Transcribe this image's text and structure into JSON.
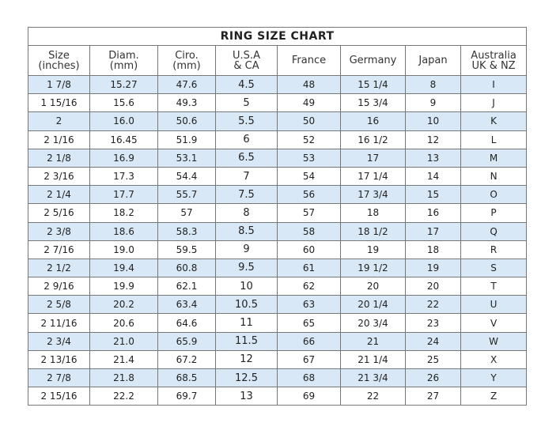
{
  "title": "RING  SIZE  CHART",
  "headers": [
    "Size\n(inches)",
    "Diam.\n(mm)",
    "Ciro.\n(mm)",
    "U.S.A\n& CA",
    "France",
    "Germany",
    "Japan",
    "Australia\nUK & NZ"
  ],
  "highlight_color": "#d8e8f6",
  "rows": [
    [
      "1 7/8",
      "15.27",
      "47.6",
      "4.5",
      "48",
      "15 1/4",
      "8",
      "I"
    ],
    [
      "1 15/16",
      "15.6",
      "49.3",
      "5",
      "49",
      "15 3/4",
      "9",
      "J"
    ],
    [
      "2",
      "16.0",
      "50.6",
      "5.5",
      "50",
      "16",
      "10",
      "K"
    ],
    [
      "2 1/16",
      "16.45",
      "51.9",
      "6",
      "52",
      "16 1/2",
      "12",
      "L"
    ],
    [
      "2 1/8",
      "16.9",
      "53.1",
      "6.5",
      "53",
      "17",
      "13",
      "M"
    ],
    [
      "2 3/16",
      "17.3",
      "54.4",
      "7",
      "54",
      "17 1/4",
      "14",
      "N"
    ],
    [
      "2 1/4",
      "17.7",
      "55.7",
      "7.5",
      "56",
      "17 3/4",
      "15",
      "O"
    ],
    [
      "2 5/16",
      "18.2",
      "57",
      "8",
      "57",
      "18",
      "16",
      "P"
    ],
    [
      "2 3/8",
      "18.6",
      "58.3",
      "8.5",
      "58",
      "18 1/2",
      "17",
      "Q"
    ],
    [
      "2 7/16",
      "19.0",
      "59.5",
      "9",
      "60",
      "19",
      "18",
      "R"
    ],
    [
      "2 1/2",
      "19.4",
      "60.8",
      "9.5",
      "61",
      "19 1/2",
      "19",
      "S"
    ],
    [
      "2 9/16",
      "19.9",
      "62.1",
      "10",
      "62",
      "20",
      "20",
      "T"
    ],
    [
      "2 5/8",
      "20.2",
      "63.4",
      "10.5",
      "63",
      "20 1/4",
      "22",
      "U"
    ],
    [
      "2 11/16",
      "20.6",
      "64.6",
      "11",
      "65",
      "20 3/4",
      "23",
      "V"
    ],
    [
      "2 3/4",
      "21.0",
      "65.9",
      "11.5",
      "66",
      "21",
      "24",
      "W"
    ],
    [
      "2 13/16",
      "21.4",
      "67.2",
      "12",
      "67",
      "21 1/4",
      "25",
      "X"
    ],
    [
      "2 7/8",
      "21.8",
      "68.5",
      "12.5",
      "68",
      "21 3/4",
      "26",
      "Y"
    ],
    [
      "2 15/16",
      "22.2",
      "69.7",
      "13",
      "69",
      "22",
      "27",
      "Z"
    ]
  ]
}
